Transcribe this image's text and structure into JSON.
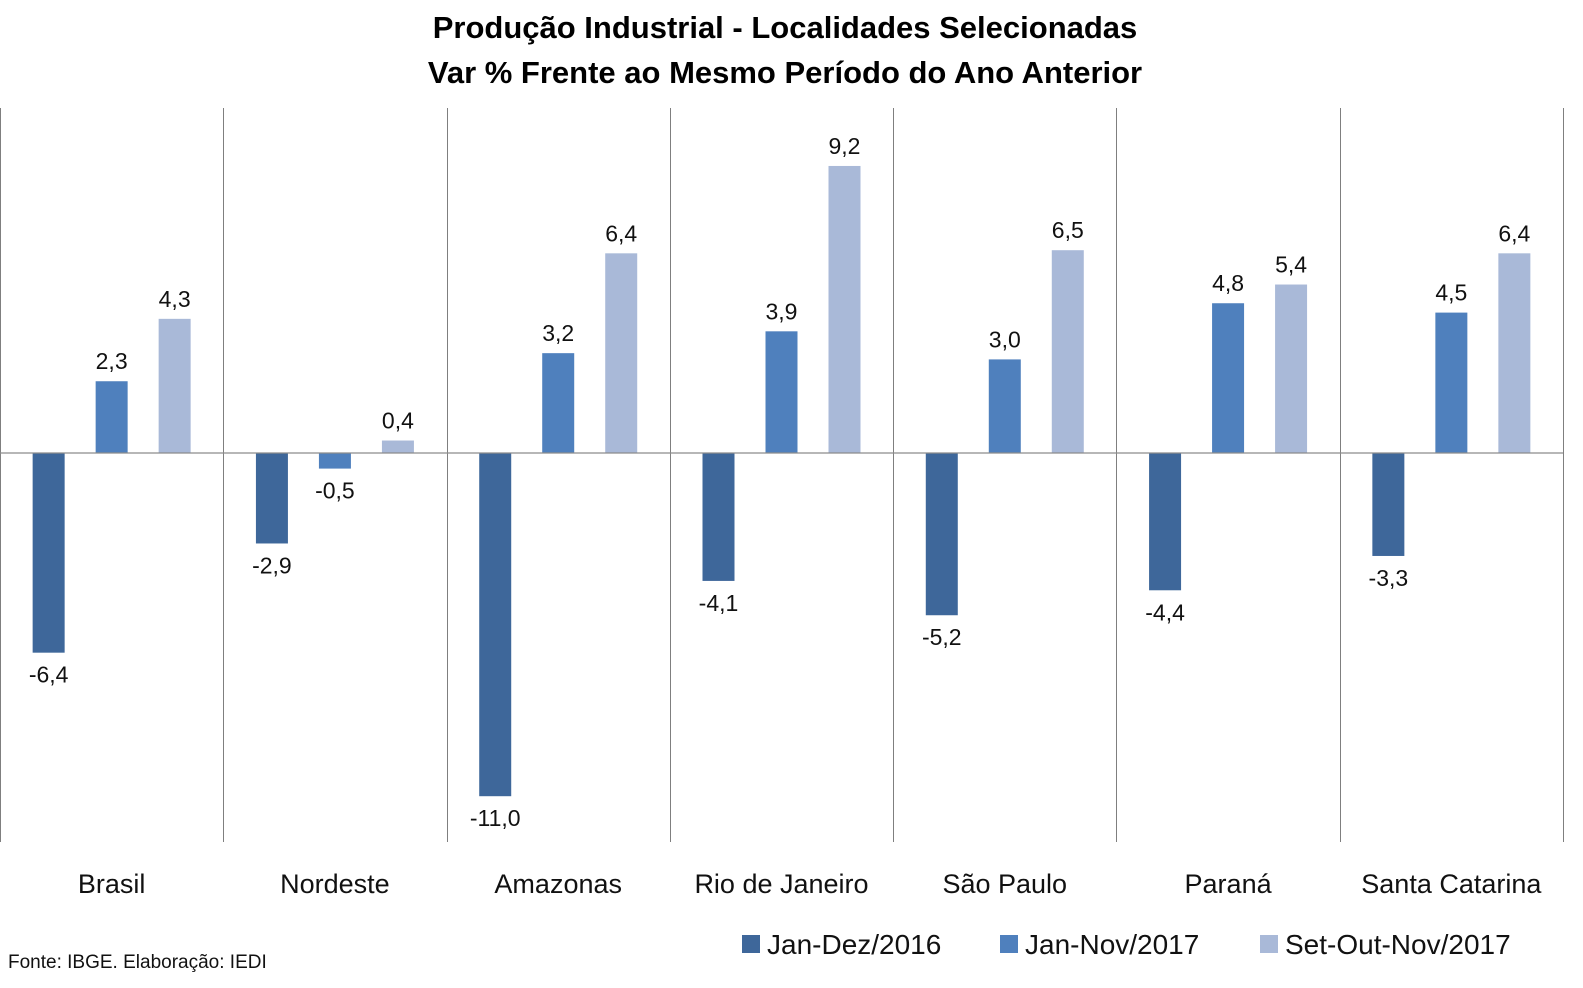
{
  "chart_data": {
    "type": "bar",
    "title": "Produção Industrial - Localidades Selecionadas",
    "subtitle": "Var % Frente ao Mesmo Período do Ano Anterior",
    "categories": [
      "Brasil",
      "Nordeste",
      "Amazonas",
      "Rio de Janeiro",
      "São Paulo",
      "Paraná",
      "Santa Catarina"
    ],
    "series": [
      {
        "name": "Jan-Dez/2016",
        "color": "#3e679a",
        "values": [
          -6.4,
          -2.9,
          -11.0,
          -4.1,
          -5.2,
          -4.4,
          -3.3
        ],
        "labels": [
          "-6,4",
          "-2,9",
          "-11,0",
          "-4,1",
          "-5,2",
          "-4,4",
          "-3,3"
        ]
      },
      {
        "name": "Jan-Nov/2017",
        "color": "#4f80bd",
        "values": [
          2.3,
          -0.5,
          3.2,
          3.9,
          3.0,
          4.8,
          4.5
        ],
        "labels": [
          "2,3",
          "-0,5",
          "3,2",
          "3,9",
          "3,0",
          "4,8",
          "4,5"
        ]
      },
      {
        "name": "Set-Out-Nov/2017",
        "color": "#a9b9d8",
        "values": [
          4.3,
          0.4,
          6.4,
          9.2,
          6.5,
          5.4,
          6.4
        ],
        "labels": [
          "4,3",
          "0,4",
          "6,4",
          "9,2",
          "6,5",
          "5,4",
          "6,4"
        ]
      }
    ],
    "ylim": [
      -12.5,
      11
    ],
    "grid": false,
    "legend": "bottom-right",
    "source": "Fonte: IBGE. Elaboração: IEDI"
  }
}
